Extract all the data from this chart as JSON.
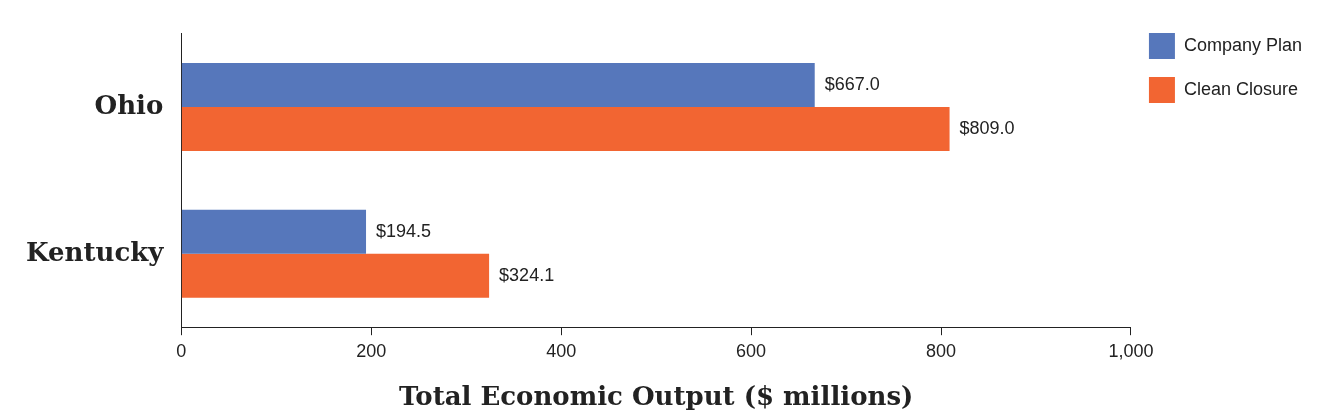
{
  "chart_data": {
    "type": "bar",
    "orientation": "horizontal",
    "xlabel": "Total Economic Output ($ millions)",
    "categories": [
      "Ohio",
      "Kentucky"
    ],
    "series": [
      {
        "name": "Company Plan",
        "color": "#5677bb",
        "values": [
          667.0,
          194.5
        ],
        "value_labels": [
          "$667.0",
          "$194.5"
        ]
      },
      {
        "name": "Clean Closure",
        "color": "#f26532",
        "values": [
          809.0,
          324.1
        ],
        "value_labels": [
          "$809.0",
          "$324.1"
        ]
      }
    ],
    "xlim": [
      0,
      1000
    ],
    "xticks": [
      0,
      200,
      400,
      600,
      800,
      {
        "value": 1000,
        "label": "1,000"
      }
    ],
    "grid": false,
    "legend": "top right"
  }
}
